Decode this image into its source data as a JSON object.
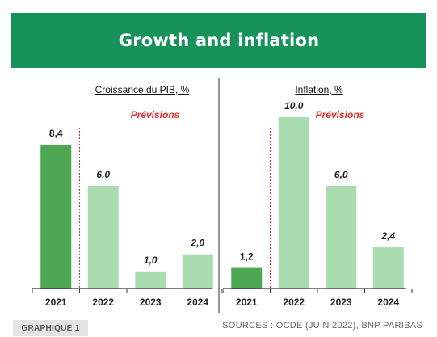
{
  "header": {
    "title": "Growth and inflation"
  },
  "footer": {
    "tag": "GRAPHIQUE 1",
    "source": "SOURCES : OCDE (JUIN 2022), BNP PARIBAS"
  },
  "colors": {
    "header_bg": "#17925a",
    "actual_bar": "#4ea853",
    "forecast_bar": "#a9dcae",
    "forecast_line": "#e03030"
  },
  "chart_data": [
    {
      "type": "bar",
      "title": "Croissance du PIB, %",
      "forecast_label": "Prévisions",
      "categories": [
        "2021",
        "2022",
        "2023",
        "2024"
      ],
      "values": [
        8.4,
        6.0,
        1.0,
        2.0
      ],
      "value_labels": [
        "8,4",
        "6,0",
        "1,0",
        "2,0"
      ],
      "forecast_from": "2022",
      "ylim": [
        0,
        10
      ]
    },
    {
      "type": "bar",
      "title": "Inflation, %",
      "forecast_label": "Prévisions",
      "categories": [
        "2021",
        "2022",
        "2023",
        "2024"
      ],
      "values": [
        1.2,
        10.0,
        6.0,
        2.4
      ],
      "value_labels": [
        "1,2",
        "10,0",
        "6,0",
        "2,4"
      ],
      "forecast_from": "2022",
      "ylim": [
        0,
        10
      ]
    }
  ]
}
